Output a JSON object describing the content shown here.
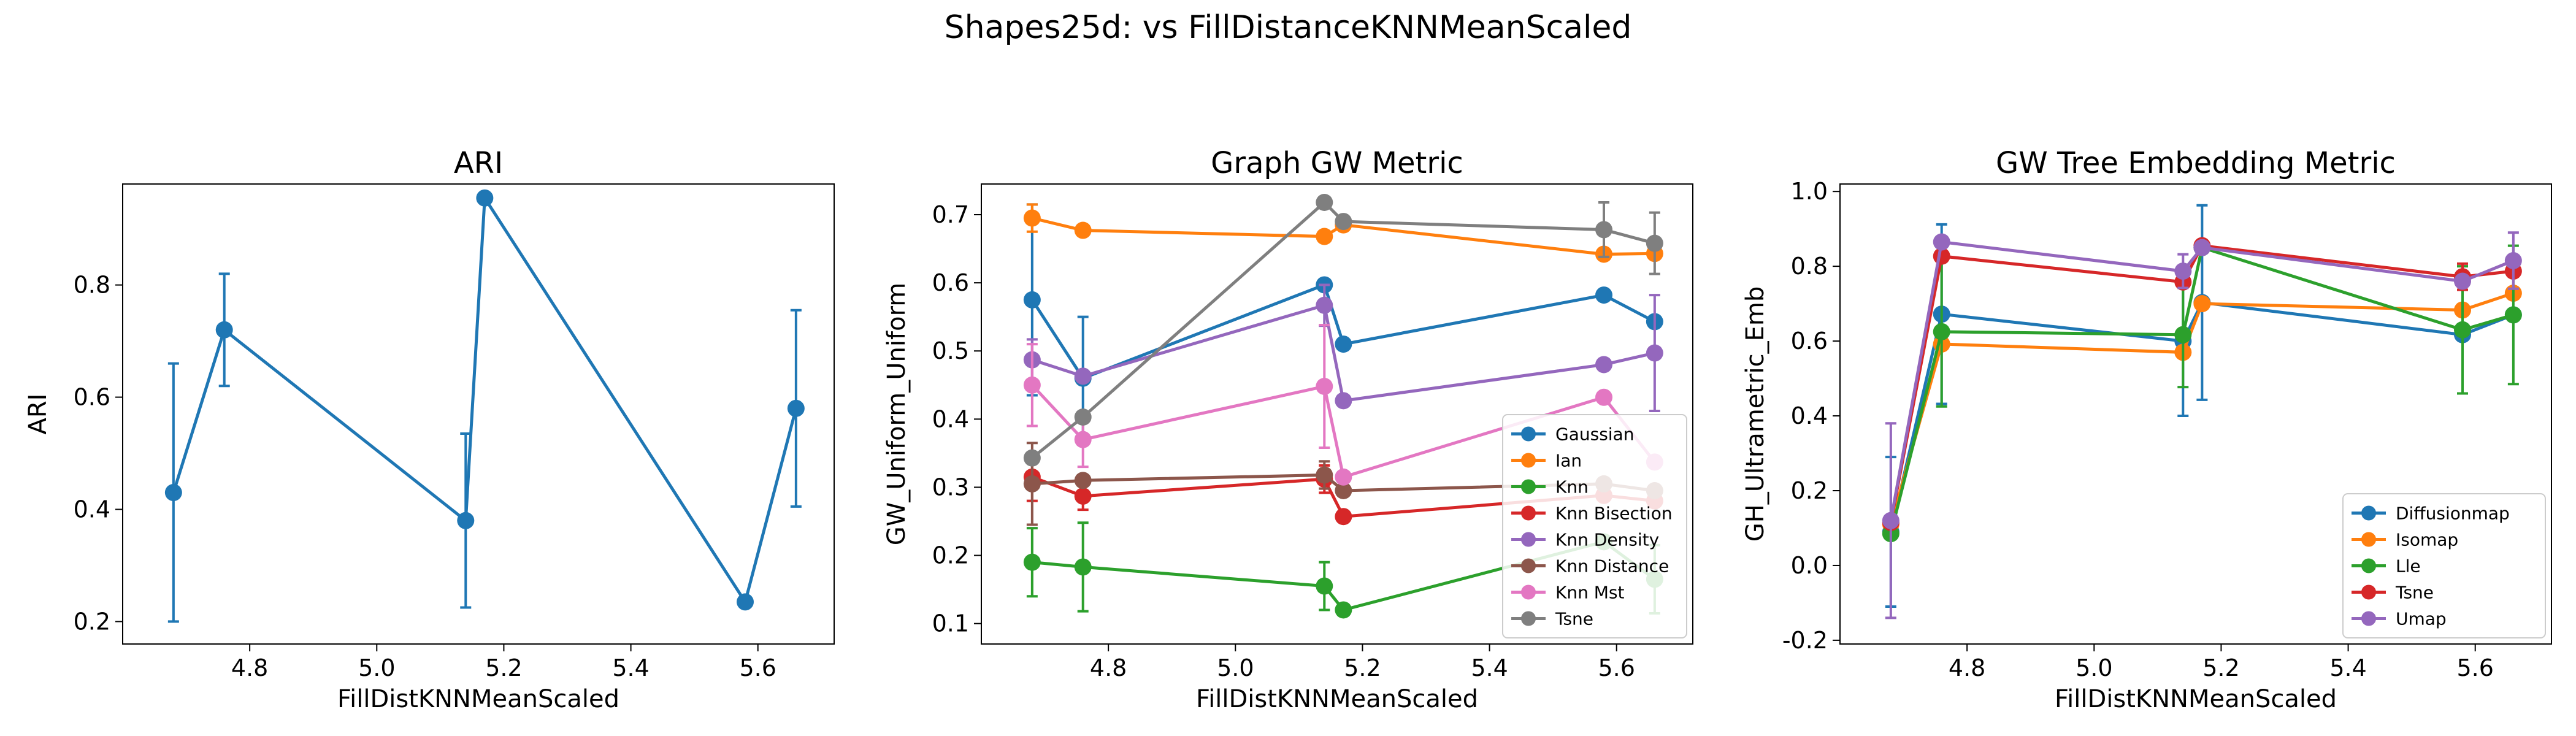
{
  "figure": {
    "title": "Shapes25d: vs FillDistanceKNNMeanScaled"
  },
  "chart_data": [
    {
      "type": "line",
      "title": "ARI",
      "xlabel": "FillDistKNNMeanScaled",
      "ylabel": "ARI",
      "xlim": [
        4.6,
        5.72
      ],
      "ylim": [
        0.16,
        0.98
      ],
      "xticks": [
        4.8,
        5.0,
        5.2,
        5.4,
        5.6
      ],
      "yticks": [
        0.2,
        0.4,
        0.6,
        0.8
      ],
      "legend": "none",
      "series": [
        {
          "color": "#1f77b4",
          "x": [
            4.68,
            4.76,
            5.14,
            5.17,
            5.58,
            5.66
          ],
          "y": [
            0.43,
            0.72,
            0.38,
            0.955,
            0.235,
            0.58
          ],
          "err": [
            0.23,
            0.1,
            0.155,
            0.0,
            0.0,
            0.175
          ]
        }
      ]
    },
    {
      "type": "line",
      "title": "Graph GW Metric",
      "xlabel": "FillDistKNNMeanScaled",
      "ylabel": "GW_Uniform_Uniform",
      "xlim": [
        4.6,
        5.72
      ],
      "ylim": [
        0.07,
        0.745
      ],
      "xticks": [
        4.8,
        5.0,
        5.2,
        5.4,
        5.6
      ],
      "yticks": [
        0.1,
        0.2,
        0.3,
        0.4,
        0.5,
        0.6,
        0.7
      ],
      "legend": "lower-right",
      "series": [
        {
          "name": "Gaussian",
          "color": "#1f77b4",
          "x": [
            4.68,
            4.76,
            5.14,
            5.17,
            5.58,
            5.66
          ],
          "y": [
            0.575,
            0.46,
            0.597,
            0.51,
            0.582,
            0.543
          ],
          "err": [
            0.14,
            0.09,
            0.0,
            0.0,
            0.0,
            0.0
          ]
        },
        {
          "name": "Ian",
          "color": "#ff7f0e",
          "x": [
            4.68,
            4.76,
            5.14,
            5.17,
            5.58,
            5.66
          ],
          "y": [
            0.695,
            0.677,
            0.668,
            0.685,
            0.642,
            0.643
          ],
          "err": [
            0.02,
            0.0,
            0.0,
            0.0,
            0.0,
            0.0
          ]
        },
        {
          "name": "Knn",
          "color": "#2ca02c",
          "x": [
            4.68,
            4.76,
            5.14,
            5.17,
            5.58,
            5.66
          ],
          "y": [
            0.19,
            0.183,
            0.155,
            0.12,
            0.22,
            0.165
          ],
          "err": [
            0.05,
            0.065,
            0.035,
            0.0,
            0.0,
            0.05
          ]
        },
        {
          "name": "Knn Bisection",
          "color": "#d62728",
          "x": [
            4.68,
            4.76,
            5.14,
            5.17,
            5.58,
            5.66
          ],
          "y": [
            0.315,
            0.287,
            0.312,
            0.257,
            0.288,
            0.28
          ],
          "err": [
            0.035,
            0.02,
            0.02,
            0.0,
            0.0,
            0.0
          ]
        },
        {
          "name": "Knn Density",
          "color": "#9467bd",
          "x": [
            4.68,
            4.76,
            5.14,
            5.17,
            5.58,
            5.66
          ],
          "y": [
            0.487,
            0.463,
            0.567,
            0.427,
            0.48,
            0.497
          ],
          "err": [
            0.03,
            0.0,
            0.03,
            0.0,
            0.0,
            0.085
          ]
        },
        {
          "name": "Knn Distance",
          "color": "#8c564b",
          "x": [
            4.68,
            4.76,
            5.14,
            5.17,
            5.58,
            5.66
          ],
          "y": [
            0.305,
            0.31,
            0.318,
            0.295,
            0.305,
            0.295
          ],
          "err": [
            0.06,
            0.0,
            0.02,
            0.0,
            0.0,
            0.0
          ]
        },
        {
          "name": "Knn Mst",
          "color": "#e377c2",
          "x": [
            4.68,
            4.76,
            5.14,
            5.17,
            5.58,
            5.66
          ],
          "y": [
            0.45,
            0.37,
            0.448,
            0.315,
            0.432,
            0.337
          ],
          "err": [
            0.06,
            0.04,
            0.09,
            0.0,
            0.0,
            0.0
          ]
        },
        {
          "name": "Tsne",
          "color": "#7f7f7f",
          "x": [
            4.68,
            4.76,
            5.14,
            5.17,
            5.58,
            5.66
          ],
          "y": [
            0.343,
            0.403,
            0.718,
            0.69,
            0.678,
            0.658
          ],
          "err": [
            0.0,
            0.0,
            0.0,
            0.0,
            0.04,
            0.045
          ]
        }
      ]
    },
    {
      "type": "line",
      "title": "GW Tree Embedding Metric",
      "xlabel": "FillDistKNNMeanScaled",
      "ylabel": "GH_Ultrametric_Emb",
      "xlim": [
        4.6,
        5.72
      ],
      "ylim": [
        -0.21,
        1.02
      ],
      "xticks": [
        4.8,
        5.0,
        5.2,
        5.4,
        5.6
      ],
      "yticks": [
        -0.2,
        0.0,
        0.2,
        0.4,
        0.6,
        0.8,
        1.0
      ],
      "legend": "lower-right",
      "series": [
        {
          "name": "Diffusionmap",
          "color": "#1f77b4",
          "x": [
            4.68,
            4.76,
            5.14,
            5.17,
            5.58,
            5.66
          ],
          "y": [
            0.09,
            0.672,
            0.6,
            0.703,
            0.617,
            0.67
          ],
          "err": [
            0.2,
            0.24,
            0.2,
            0.26,
            0.0,
            0.0
          ]
        },
        {
          "name": "Isomap",
          "color": "#ff7f0e",
          "x": [
            4.68,
            4.76,
            5.14,
            5.17,
            5.58,
            5.66
          ],
          "y": [
            0.11,
            0.592,
            0.57,
            0.7,
            0.683,
            0.728
          ],
          "err": [
            0.0,
            0.0,
            0.0,
            0.0,
            0.0,
            0.0
          ]
        },
        {
          "name": "Lle",
          "color": "#2ca02c",
          "x": [
            4.68,
            4.76,
            5.14,
            5.17,
            5.58,
            5.66
          ],
          "y": [
            0.085,
            0.625,
            0.617,
            0.85,
            0.63,
            0.67
          ],
          "err": [
            0.0,
            0.2,
            0.14,
            0.0,
            0.17,
            0.185
          ]
        },
        {
          "name": "Tsne",
          "color": "#d62728",
          "x": [
            4.68,
            4.76,
            5.14,
            5.17,
            5.58,
            5.66
          ],
          "y": [
            0.115,
            0.827,
            0.758,
            0.855,
            0.772,
            0.787
          ],
          "err": [
            0.0,
            0.0,
            0.0,
            0.0,
            0.035,
            0.0
          ]
        },
        {
          "name": "Umap",
          "color": "#9467bd",
          "x": [
            4.68,
            4.76,
            5.14,
            5.17,
            5.58,
            5.66
          ],
          "y": [
            0.12,
            0.865,
            0.787,
            0.85,
            0.76,
            0.815
          ],
          "err": [
            0.26,
            0.0,
            0.045,
            0.0,
            0.0,
            0.075
          ]
        }
      ]
    }
  ]
}
